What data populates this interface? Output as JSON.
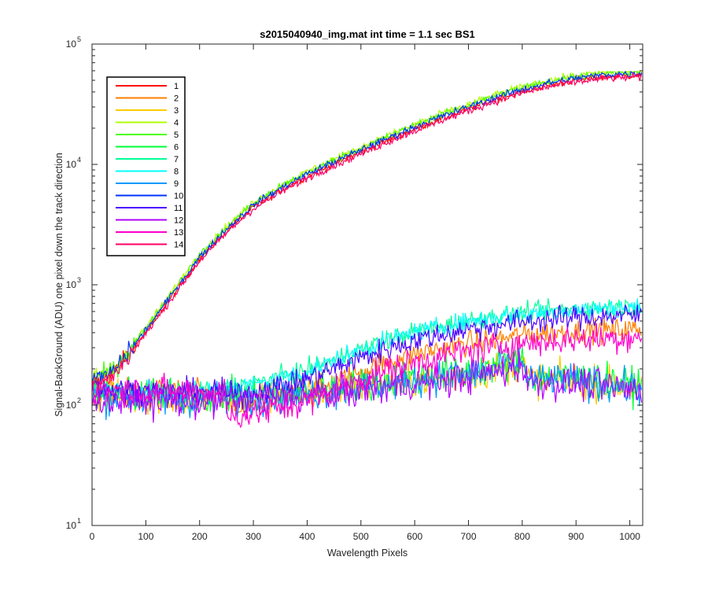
{
  "chart_data": {
    "type": "line",
    "title": "s2015040940_img.mat int time = 1.1 sec   BS1",
    "xlabel": "Wavelength Pixels",
    "ylabel": "Signal-BackGround (ADU) one pixel down the track direction",
    "xlim": [
      0,
      1024
    ],
    "ylim": [
      10,
      100000
    ],
    "yscale": "log",
    "xticks": [
      "0",
      "100",
      "200",
      "300",
      "400",
      "500",
      "600",
      "700",
      "800",
      "900",
      "1000"
    ],
    "ytick_exponents": [
      "1",
      "2",
      "3",
      "4",
      "5"
    ],
    "ytick_base": "10",
    "grid": false,
    "legend_position": "top-left",
    "series": [
      {
        "name": "1",
        "color": "#ff0000",
        "profile": "high",
        "scale": 0.96,
        "noise": 0.03
      },
      {
        "name": "2",
        "color": "#ff7f00",
        "profile": "mid",
        "level": 430,
        "noise": 0.1
      },
      {
        "name": "3",
        "color": "#ffcc00",
        "profile": "low",
        "scale": 1.0,
        "noise": 0.14
      },
      {
        "name": "4",
        "color": "#b2ff00",
        "profile": "high",
        "scale": 1.05,
        "noise": 0.03
      },
      {
        "name": "5",
        "color": "#4cff00",
        "profile": "high",
        "scale": 1.03,
        "noise": 0.03
      },
      {
        "name": "6",
        "color": "#00ff33",
        "profile": "low",
        "scale": 1.05,
        "noise": 0.14
      },
      {
        "name": "7",
        "color": "#00ff99",
        "profile": "mid",
        "level": 660,
        "noise": 0.08
      },
      {
        "name": "8",
        "color": "#00ffff",
        "profile": "mid",
        "level": 650,
        "noise": 0.08
      },
      {
        "name": "9",
        "color": "#0099ff",
        "profile": "low",
        "scale": 1.0,
        "noise": 0.14
      },
      {
        "name": "10",
        "color": "#0033ff",
        "profile": "high",
        "scale": 1.0,
        "noise": 0.03
      },
      {
        "name": "11",
        "color": "#4c00ff",
        "profile": "mid",
        "level": 560,
        "noise": 0.1
      },
      {
        "name": "12",
        "color": "#b200ff",
        "profile": "low",
        "scale": 0.95,
        "noise": 0.14
      },
      {
        "name": "13",
        "color": "#ff00cc",
        "profile": "mid",
        "level": 370,
        "noise": 0.12
      },
      {
        "name": "14",
        "color": "#ff0066",
        "profile": "high",
        "scale": 0.93,
        "noise": 0.03
      }
    ],
    "high_profile_points": [
      [
        0,
        155
      ],
      [
        40,
        190
      ],
      [
        100,
        420
      ],
      [
        150,
        850
      ],
      [
        200,
        1700
      ],
      [
        250,
        2900
      ],
      [
        300,
        4600
      ],
      [
        350,
        6300
      ],
      [
        400,
        8300
      ],
      [
        450,
        10500
      ],
      [
        500,
        13200
      ],
      [
        550,
        16500
      ],
      [
        600,
        20500
      ],
      [
        650,
        25000
      ],
      [
        700,
        30000
      ],
      [
        750,
        36000
      ],
      [
        800,
        42000
      ],
      [
        850,
        47500
      ],
      [
        900,
        52000
      ],
      [
        950,
        55500
      ],
      [
        1024,
        57500
      ]
    ],
    "mid_profile_points": [
      [
        0,
        140
      ],
      [
        200,
        140
      ],
      [
        300,
        155
      ],
      [
        400,
        200
      ],
      [
        450,
        245
      ],
      [
        500,
        300
      ],
      [
        550,
        360
      ],
      [
        600,
        420
      ],
      [
        700,
        520
      ],
      [
        800,
        600
      ],
      [
        900,
        650
      ],
      [
        1024,
        680
      ]
    ],
    "low_profile_points": [
      [
        0,
        118
      ],
      [
        200,
        112
      ],
      [
        300,
        115
      ],
      [
        400,
        125
      ],
      [
        500,
        140
      ],
      [
        600,
        160
      ],
      [
        700,
        180
      ],
      [
        790,
        215
      ],
      [
        800,
        240
      ],
      [
        810,
        165
      ],
      [
        900,
        160
      ],
      [
        1024,
        138
      ]
    ]
  }
}
